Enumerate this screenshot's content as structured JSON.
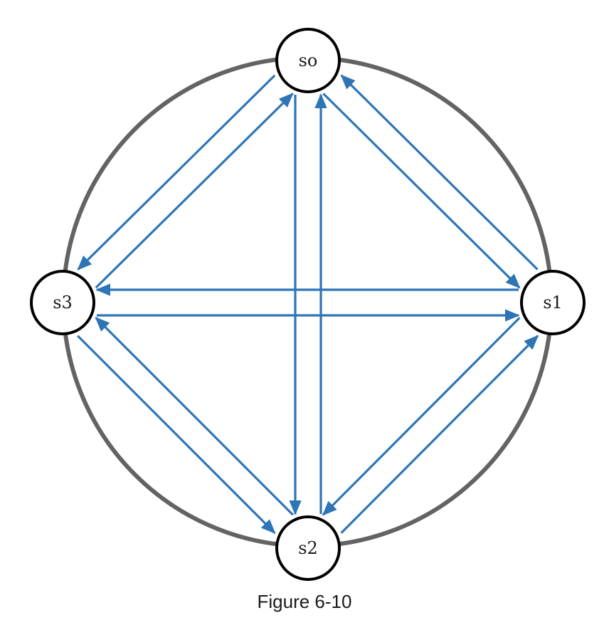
{
  "nodes": [
    {
      "id": "s0",
      "label": "so"
    },
    {
      "id": "s1",
      "label": "s1"
    },
    {
      "id": "s2",
      "label": "s2"
    },
    {
      "id": "s3",
      "label": "s3"
    }
  ],
  "edges": [
    {
      "from": "s0",
      "to": "s3"
    },
    {
      "from": "s3",
      "to": "s0"
    },
    {
      "from": "s0",
      "to": "s1"
    },
    {
      "from": "s1",
      "to": "s0"
    },
    {
      "from": "s0",
      "to": "s2"
    },
    {
      "from": "s2",
      "to": "s0"
    },
    {
      "from": "s1",
      "to": "s3"
    },
    {
      "from": "s3",
      "to": "s1"
    },
    {
      "from": "s3",
      "to": "s2"
    },
    {
      "from": "s2",
      "to": "s3"
    },
    {
      "from": "s2",
      "to": "s1"
    },
    {
      "from": "s1",
      "to": "s2"
    }
  ],
  "colors": {
    "ring": "#636363",
    "edge": "#2e75b6",
    "node_border": "#000000"
  },
  "caption": "Figure 6-10"
}
